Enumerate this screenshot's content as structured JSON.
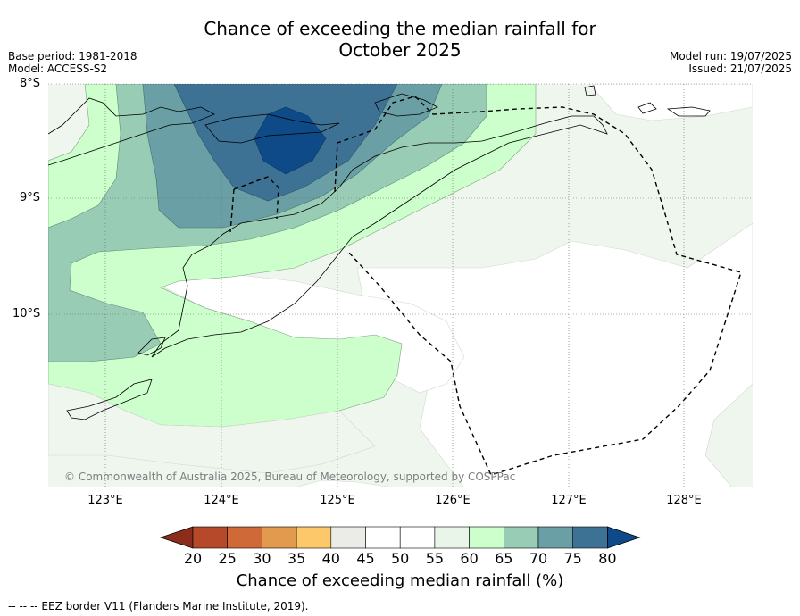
{
  "title_line1": "Chance of exceeding the median rainfall for",
  "title_line2": "October 2025",
  "base_period": "Base period: 1981-2018",
  "model": "Model: ACCESS-S2",
  "model_run": "Model run: 19/07/2025",
  "issued": "Issued: 21/07/2025",
  "lat_labels": [
    "8°S",
    "9°S",
    "10°S"
  ],
  "lon_labels": [
    "123°E",
    "124°E",
    "125°E",
    "126°E",
    "127°E",
    "128°E"
  ],
  "copyright": "© Commonwealth of Australia 2025, Bureau of Meteorology, supported by COSPPac",
  "colorbar": {
    "title": "Chance of exceeding median rainfall (%)",
    "ticks": [
      "20",
      "25",
      "30",
      "35",
      "40",
      "45",
      "50",
      "55",
      "60",
      "65",
      "70",
      "75",
      "80"
    ],
    "colors": [
      "#8c2d1c",
      "#b5492a",
      "#cf6a38",
      "#e29a4e",
      "#fdc86a",
      "#ebebe8",
      "#ffffff",
      "#ffffff",
      "#eaf5ea",
      "#ccffcc",
      "#99ccb5",
      "#6a9fa5",
      "#3e7294",
      "#0d4a87"
    ]
  },
  "footer": "-- -- -- EEZ border V11 (Flanders Marine Institute, 2019).",
  "fill_colors": {
    "c55": "#eef6ee",
    "c60": "#ccffcc",
    "c65": "#99ccb5",
    "c70": "#6a9fa5",
    "c75": "#3e7294",
    "c80": "#0d4a87",
    "white": "#ffffff"
  }
}
